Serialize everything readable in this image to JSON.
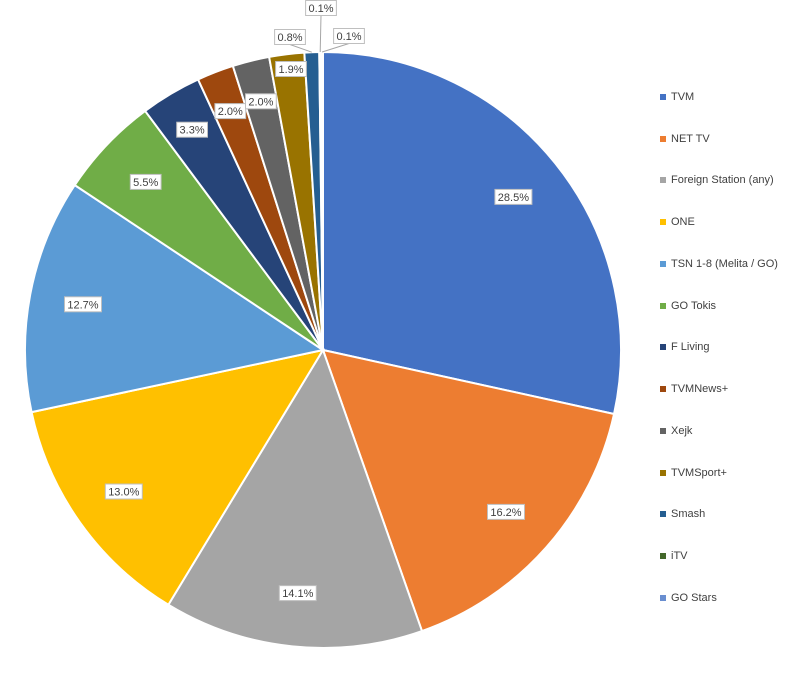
{
  "chart_data": {
    "type": "pie",
    "title": "",
    "legend_position": "right",
    "categories": [
      "TVM",
      "NET TV",
      "Foreign Station (any)",
      "ONE",
      "TSN 1-8 (Melita / GO)",
      "GO Tokis",
      "F Living",
      "TVMNews+",
      "Xejk",
      "TVMSport+",
      "Smash",
      "iTV",
      "GO Stars"
    ],
    "values": [
      28.5,
      16.2,
      14.1,
      13.0,
      12.7,
      5.5,
      3.3,
      2.0,
      2.0,
      1.9,
      0.8,
      0.1,
      0.1
    ],
    "labels": [
      "28.5%",
      "16.2%",
      "14.1%",
      "13.0%",
      "12.7%",
      "5.5%",
      "3.3%",
      "2.0%",
      "2.0%",
      "1.9%",
      "0.8%",
      "0.1%",
      "0.1%"
    ],
    "colors": [
      "#4472C4",
      "#ED7D31",
      "#A5A5A5",
      "#FFC000",
      "#5B9BD5",
      "#70AD47",
      "#264478",
      "#9E480E",
      "#636363",
      "#997300",
      "#255E91",
      "#43682B",
      "#698ED0"
    ]
  }
}
